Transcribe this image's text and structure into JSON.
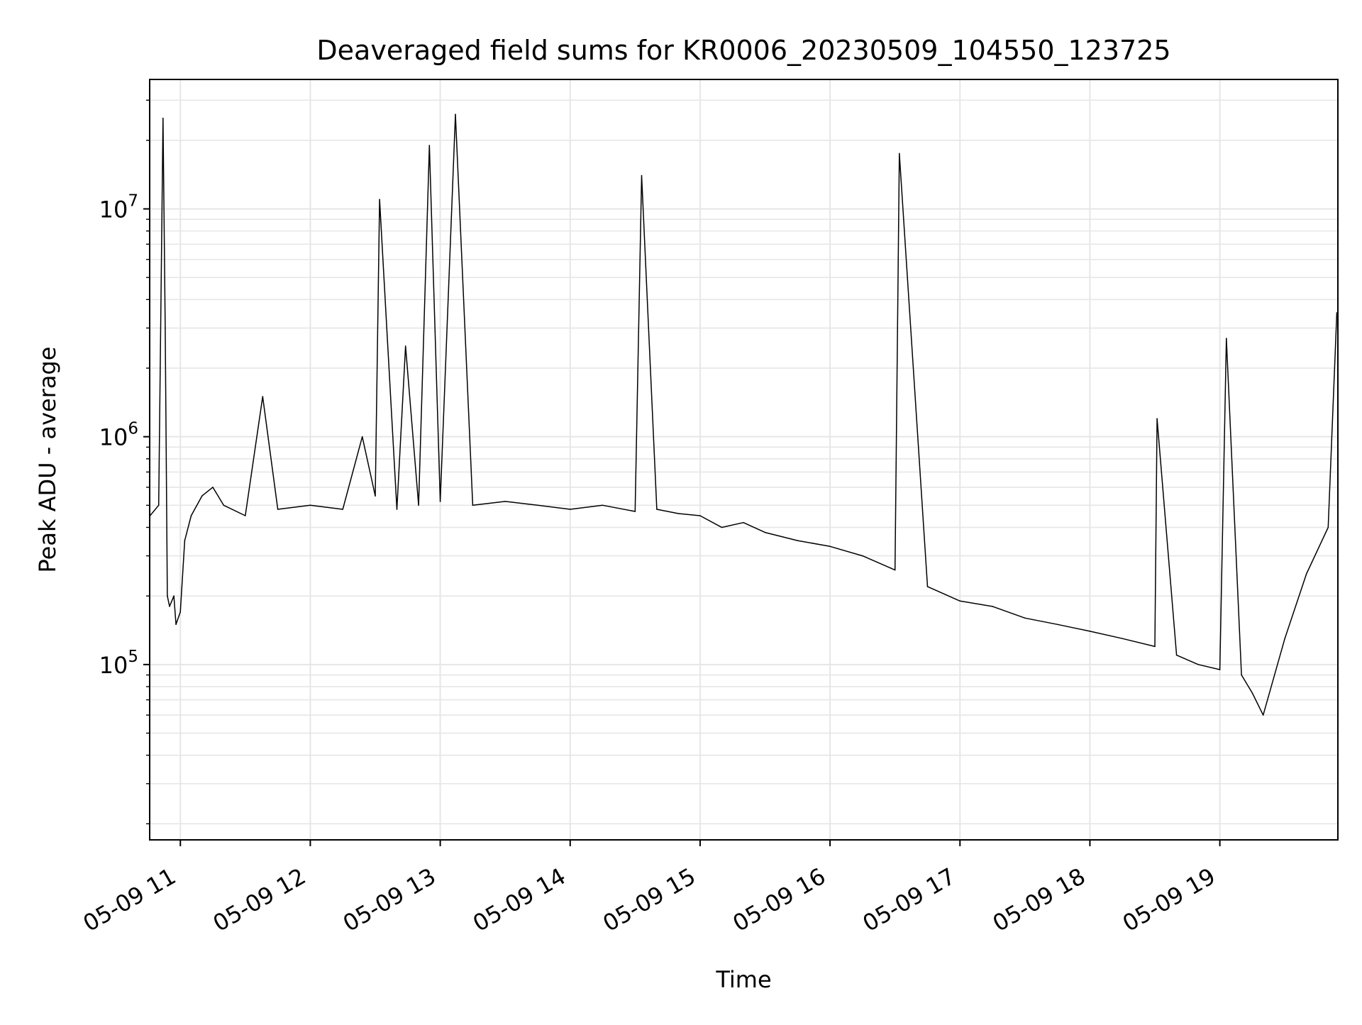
{
  "chart_data": {
    "type": "line",
    "title": "Deaveraged field sums for KR0006_20230509_104550_123725",
    "xlabel": "Time",
    "ylabel": "Peak ADU - average",
    "xscale": "time",
    "yscale": "log",
    "xlim": [
      "2023-05-09 10:45:50",
      "2023-05-09 19:54:30"
    ],
    "ylim": [
      17000,
      37000000
    ],
    "grid": true,
    "legend": "none",
    "line_color": "#000000",
    "grid_color": "#e6e6e6",
    "x_tick_labels": [
      "05-09 11",
      "05-09 12",
      "05-09 13",
      "05-09 14",
      "05-09 15",
      "05-09 16",
      "05-09 17",
      "05-09 18",
      "05-09 19"
    ],
    "x_ticks": [
      "2023-05-09 11:00",
      "2023-05-09 12:00",
      "2023-05-09 13:00",
      "2023-05-09 14:00",
      "2023-05-09 15:00",
      "2023-05-09 16:00",
      "2023-05-09 17:00",
      "2023-05-09 18:00",
      "2023-05-09 19:00"
    ],
    "y_ticks": [
      100000,
      1000000,
      10000000
    ],
    "y_tick_labels": [
      {
        "base": "10",
        "exp": "5"
      },
      {
        "base": "10",
        "exp": "6"
      },
      {
        "base": "10",
        "exp": "7"
      }
    ],
    "series": [
      {
        "x": [
          "2023-05-09 10:46",
          "2023-05-09 10:50",
          "2023-05-09 10:52",
          "2023-05-09 10:53",
          "2023-05-09 10:54",
          "2023-05-09 10:55",
          "2023-05-09 10:57",
          "2023-05-09 10:58",
          "2023-05-09 11:00",
          "2023-05-09 11:02",
          "2023-05-09 11:05",
          "2023-05-09 11:10",
          "2023-05-09 11:15",
          "2023-05-09 11:20",
          "2023-05-09 11:30",
          "2023-05-09 11:38",
          "2023-05-09 11:45",
          "2023-05-09 12:00",
          "2023-05-09 12:15",
          "2023-05-09 12:24",
          "2023-05-09 12:30",
          "2023-05-09 12:32",
          "2023-05-09 12:40",
          "2023-05-09 12:44",
          "2023-05-09 12:50",
          "2023-05-09 12:55",
          "2023-05-09 13:00",
          "2023-05-09 13:07",
          "2023-05-09 13:15",
          "2023-05-09 13:30",
          "2023-05-09 13:45",
          "2023-05-09 14:00",
          "2023-05-09 14:15",
          "2023-05-09 14:30",
          "2023-05-09 14:33",
          "2023-05-09 14:40",
          "2023-05-09 14:50",
          "2023-05-09 15:00",
          "2023-05-09 15:10",
          "2023-05-09 15:20",
          "2023-05-09 15:30",
          "2023-05-09 15:45",
          "2023-05-09 16:00",
          "2023-05-09 16:15",
          "2023-05-09 16:30",
          "2023-05-09 16:32",
          "2023-05-09 16:45",
          "2023-05-09 17:00",
          "2023-05-09 17:15",
          "2023-05-09 17:30",
          "2023-05-09 17:45",
          "2023-05-09 18:00",
          "2023-05-09 18:15",
          "2023-05-09 18:30",
          "2023-05-09 18:31",
          "2023-05-09 18:40",
          "2023-05-09 18:50",
          "2023-05-09 19:00",
          "2023-05-09 19:03",
          "2023-05-09 19:10",
          "2023-05-09 19:15",
          "2023-05-09 19:20",
          "2023-05-09 19:30",
          "2023-05-09 19:40",
          "2023-05-09 19:50",
          "2023-05-09 19:54"
        ],
        "y": [
          450000,
          500000,
          25000000,
          3000000,
          200000,
          180000,
          200000,
          150000,
          170000,
          350000,
          450000,
          550000,
          600000,
          500000,
          450000,
          1500000,
          480000,
          500000,
          480000,
          1000000,
          550000,
          11000000,
          480000,
          2500000,
          500000,
          19000000,
          520000,
          26000000,
          500000,
          520000,
          500000,
          480000,
          500000,
          470000,
          14000000,
          480000,
          460000,
          450000,
          400000,
          420000,
          380000,
          350000,
          330000,
          300000,
          260000,
          17500000,
          220000,
          190000,
          180000,
          160000,
          150000,
          140000,
          130000,
          120000,
          1200000,
          110000,
          100000,
          95000,
          2700000,
          90000,
          75000,
          60000,
          130000,
          250000,
          400000,
          3500000
        ]
      }
    ]
  }
}
